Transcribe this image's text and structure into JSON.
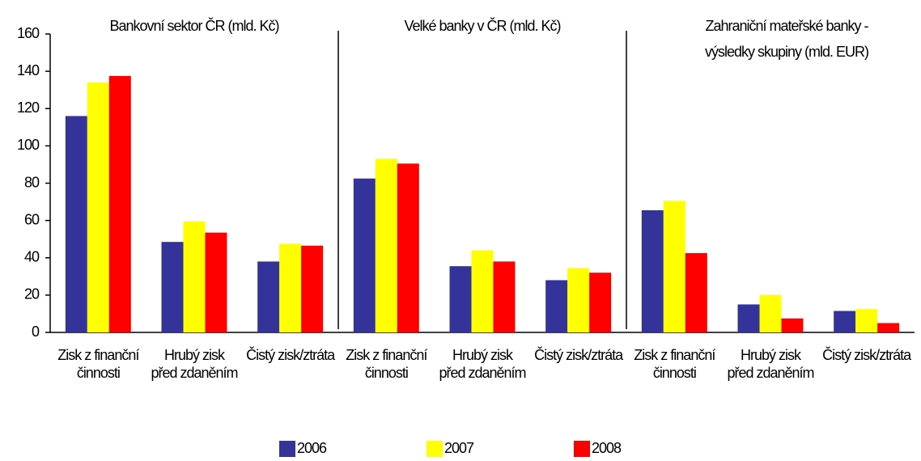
{
  "chart_data": {
    "type": "bar",
    "annotations": [
      "Bankovní sektor ČR (mld. Kč)",
      "Velké banky v ČR (mld. Kč)",
      "Zahraniční mateřské banky - výsledky skupiny (mld. EUR)"
    ],
    "categories": [
      "Zisk z finanční činnosti",
      "Hrubý zisk před zdaněním",
      "Čistý zisk/ztráta",
      "Zisk z finanční činnosti",
      "Hrubý zisk před zdaněním",
      "Čistý zisk/ztráta",
      "Zisk z finanční činnosti",
      "Hrubý zisk před zdaněním",
      "Čistý zisk/ztráta"
    ],
    "series": [
      {
        "name": "2006",
        "color": "#333399",
        "values": [
          116,
          48.5,
          38,
          82.5,
          35.5,
          28,
          65.5,
          15,
          11.5
        ]
      },
      {
        "name": "2007",
        "color": "#ffff00",
        "values": [
          134,
          59.5,
          47.5,
          93,
          44,
          34.5,
          70.5,
          20,
          12.5
        ]
      },
      {
        "name": "2008",
        "color": "#ff0000",
        "values": [
          137.5,
          53.5,
          46.5,
          90.5,
          38,
          32,
          42.5,
          7.5,
          5
        ]
      }
    ],
    "ylim": [
      0,
      160
    ],
    "yticks": [
      0,
      20,
      40,
      60,
      80,
      100,
      120,
      140,
      160
    ],
    "legend": "bottom"
  }
}
